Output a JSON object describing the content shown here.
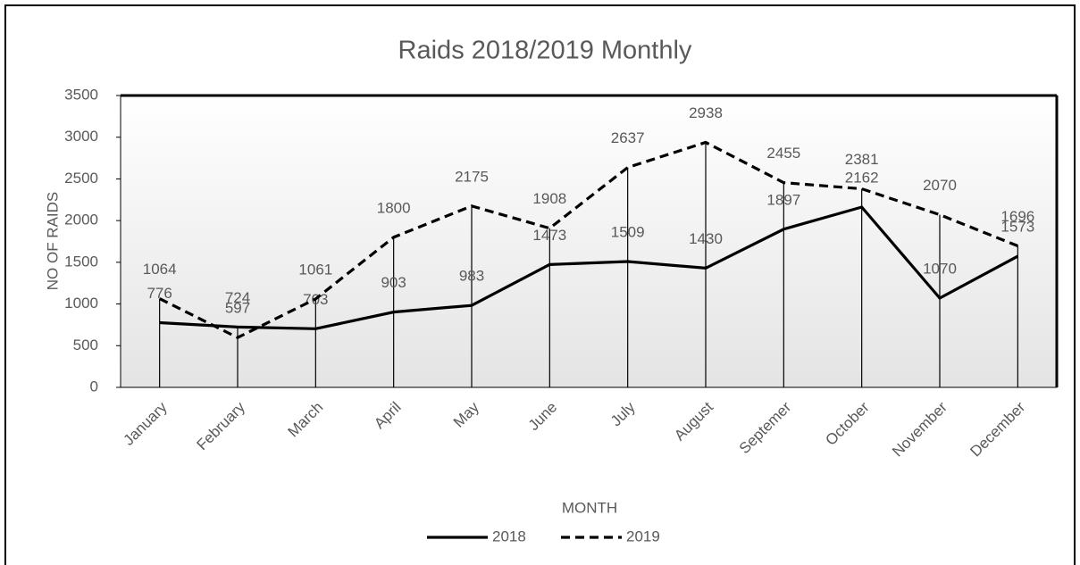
{
  "chart_data": {
    "type": "line",
    "title": "Raids 2018/2019 Monthly",
    "x_label": "MONTH",
    "y_label": "NO OF RAIDS",
    "categories": [
      "January",
      "February",
      "March",
      "April",
      "May",
      "June",
      "July",
      "August",
      "Septemer",
      "October",
      "November",
      "December"
    ],
    "series": [
      {
        "name": "2018",
        "color": "#000000",
        "dash": false,
        "values": [
          776,
          724,
          703,
          903,
          983,
          1473,
          1509,
          1430,
          1897,
          2162,
          1070,
          1573
        ]
      },
      {
        "name": "2019",
        "color": "#000000",
        "dash": true,
        "values": [
          1064,
          597,
          1061,
          1800,
          2175,
          1908,
          2637,
          2938,
          2455,
          2381,
          2070,
          1696
        ]
      }
    ],
    "ylim": [
      0,
      3500
    ],
    "yticks": [
      0,
      500,
      1000,
      1500,
      2000,
      2500,
      3000,
      3500
    ],
    "drop_lines": true,
    "legend": "bottom"
  }
}
